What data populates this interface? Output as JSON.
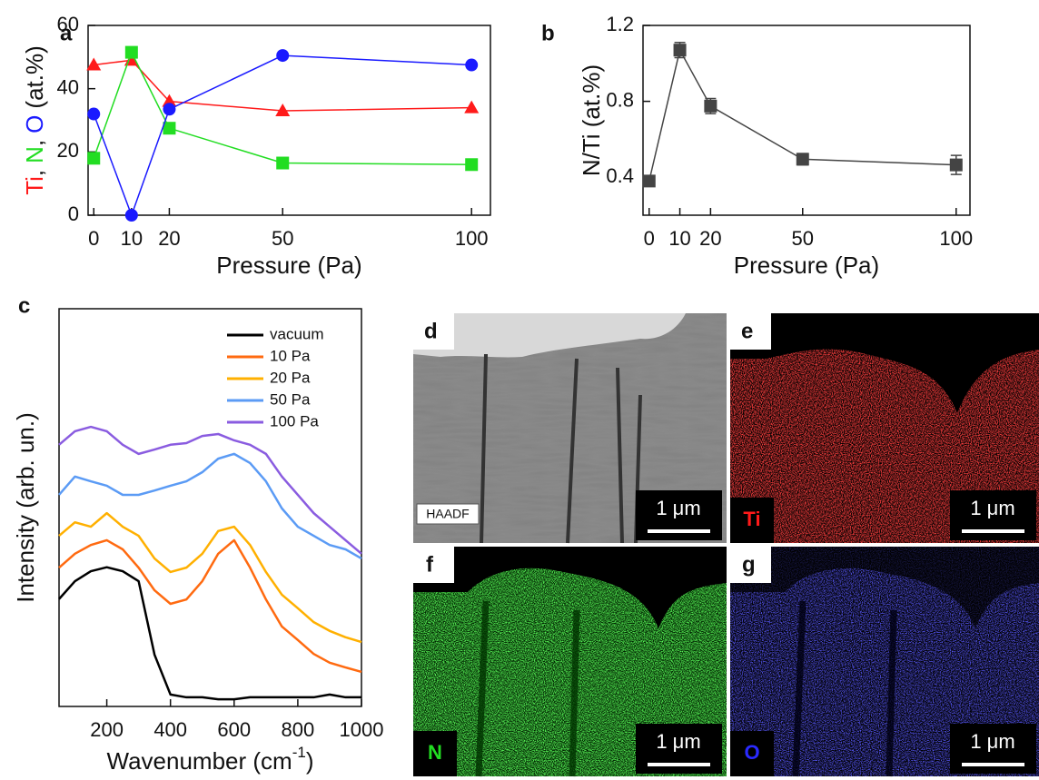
{
  "chart_data": [
    {
      "type": "line",
      "panel_label": "a",
      "xlabel": "Pressure (Pa)",
      "ylabel_separator": ",",
      "ylabel_unit": "(at.%)",
      "x": [
        0,
        10,
        20,
        50,
        100
      ],
      "xlim": [
        -1.5,
        105
      ],
      "ylim": [
        0,
        60
      ],
      "xticks": [
        0,
        10,
        20,
        50,
        100
      ],
      "yticks": [
        0,
        20,
        40,
        60
      ],
      "series": [
        {
          "name": "Ti",
          "color": "#ff1a1a",
          "marker": "triangle",
          "values": [
            47.5,
            49,
            36,
            33,
            34
          ]
        },
        {
          "name": "N",
          "color": "#22dd22",
          "marker": "square",
          "values": [
            18,
            51.5,
            27.5,
            16.5,
            16
          ]
        },
        {
          "name": "O",
          "color": "#1a1aff",
          "marker": "circle",
          "values": [
            32,
            0,
            33.5,
            50.5,
            47.5
          ]
        }
      ]
    },
    {
      "type": "line",
      "panel_label": "b",
      "xlabel": "Pressure (Pa)",
      "ylabel": "N/Ti (at.%)",
      "x": [
        0,
        10,
        20,
        50,
        100
      ],
      "xlim": [
        -2,
        104.5
      ],
      "ylim": [
        0.2,
        1.2
      ],
      "xticks": [
        0,
        10,
        20,
        50,
        100
      ],
      "yticks": [
        0.4,
        0.8,
        1.2
      ],
      "color": "#444444",
      "marker": "square",
      "values": [
        0.38,
        1.07,
        0.775,
        0.495,
        0.465
      ],
      "errors": [
        0.02,
        0.04,
        0.04,
        0.03,
        0.05
      ]
    },
    {
      "type": "line",
      "panel_label": "c",
      "xlabel": "Wavenumber (cm",
      "xlabel_superscript": "-1",
      "xlabel_close": ")",
      "ylabel": "Intensity (arb. un.)",
      "x": [
        50,
        100,
        150,
        200,
        250,
        300,
        350,
        400,
        450,
        500,
        550,
        600,
        650,
        700,
        750,
        800,
        850,
        900,
        950,
        1000
      ],
      "xlim": [
        50,
        1000
      ],
      "ylim": [
        0,
        100
      ],
      "xticks": [
        200,
        400,
        600,
        800,
        1000
      ],
      "legend": "upper right",
      "series": [
        {
          "name": "vacuum",
          "color": "#000000",
          "values": [
            27,
            31.5,
            34,
            35,
            34,
            31.5,
            13,
            3,
            2.3,
            2.3,
            1.8,
            1.8,
            2.3,
            2.3,
            2.3,
            2.3,
            2.3,
            3,
            2.3,
            2.3
          ]
        },
        {
          "name": "10 Pa",
          "color": "#ff6a10",
          "values": [
            34.9,
            38.4,
            40.6,
            41.8,
            39.5,
            34.9,
            29.2,
            25.8,
            26.9,
            31.5,
            38.4,
            41.8,
            34.9,
            26.9,
            20.1,
            16.7,
            13.2,
            11,
            9.8,
            8.7
          ]
        },
        {
          "name": "20 Pa",
          "color": "#ffb000",
          "values": [
            42.9,
            46.3,
            45.2,
            48.6,
            45.2,
            42.9,
            37.2,
            33.8,
            34.9,
            38.4,
            44.1,
            45.2,
            40.6,
            33.8,
            28.1,
            24.7,
            21.2,
            19,
            17.4,
            16.2
          ]
        },
        {
          "name": "50 Pa",
          "color": "#5b9bf5",
          "values": [
            53.2,
            57.8,
            56.6,
            55.5,
            53.2,
            53.2,
            54.3,
            55.5,
            56.6,
            58.9,
            62.3,
            63.5,
            61.2,
            56.6,
            49.8,
            45.2,
            42.9,
            40.6,
            39.5,
            37.2
          ]
        },
        {
          "name": "100 Pa",
          "color": "#8a5ce0",
          "values": [
            65.8,
            69.2,
            70.3,
            69.2,
            65.8,
            63.5,
            64.6,
            65.8,
            66.2,
            68,
            68.5,
            66.9,
            65.8,
            63.5,
            57.8,
            53.2,
            48.6,
            45.2,
            41.8,
            38.4
          ]
        }
      ]
    }
  ],
  "images": [
    {
      "label": "d",
      "tag": "HAADF",
      "scale_bar": "1 μm"
    },
    {
      "label": "e",
      "tag": "Ti",
      "scale_bar": "1 μm"
    },
    {
      "label": "f",
      "tag": "N",
      "scale_bar": "1 μm"
    },
    {
      "label": "g",
      "tag": "O",
      "scale_bar": "1 μm"
    }
  ]
}
